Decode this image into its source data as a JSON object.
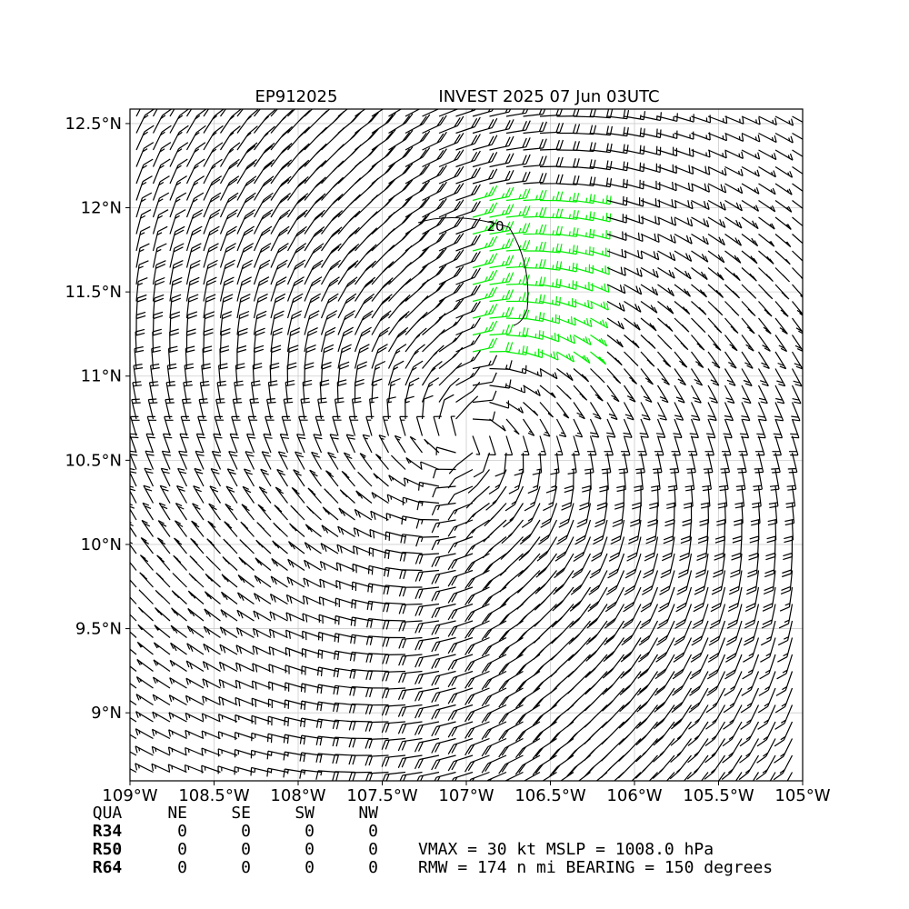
{
  "chart_data": {
    "type": "wind_barbs",
    "title_left": "EP912025",
    "title_right": "INVEST 2025 07 Jun 03UTC",
    "xlim": [
      -109,
      -105
    ],
    "ylim": [
      8.596,
      12.586
    ],
    "xticks": [
      {
        "value": -109,
        "label": "109°W"
      },
      {
        "value": -108.5,
        "label": "108.5°W"
      },
      {
        "value": -108,
        "label": "108°W"
      },
      {
        "value": -107.5,
        "label": "107.5°W"
      },
      {
        "value": -107,
        "label": "107°W"
      },
      {
        "value": -106.5,
        "label": "106.5°W"
      },
      {
        "value": -106,
        "label": "106°W"
      },
      {
        "value": -105.5,
        "label": "105.5°W"
      },
      {
        "value": -105,
        "label": "105°W"
      }
    ],
    "yticks": [
      {
        "value": 9,
        "label": "9°N"
      },
      {
        "value": 9.5,
        "label": "9.5°N"
      },
      {
        "value": 10,
        "label": "10°N"
      },
      {
        "value": 10.5,
        "label": "10.5°N"
      },
      {
        "value": 11,
        "label": "11°N"
      },
      {
        "value": 11.5,
        "label": "11.5°N"
      },
      {
        "value": 12,
        "label": "12°N"
      },
      {
        "value": 12.5,
        "label": "12.5°N"
      }
    ],
    "contour_label": "20",
    "grid": true
  },
  "table": {
    "header": [
      "QUA",
      "NE",
      "SE",
      "SW",
      "NW"
    ],
    "rows": [
      [
        "R34",
        0,
        0,
        0,
        0
      ],
      [
        "R50",
        0,
        0,
        0,
        0
      ],
      [
        "R64",
        0,
        0,
        0,
        0
      ]
    ]
  },
  "info": [
    "VMAX =  30 kt MSLP = 1008.0 hPa",
    "RMW = 174 n mi BEARING = 150 degrees"
  ]
}
